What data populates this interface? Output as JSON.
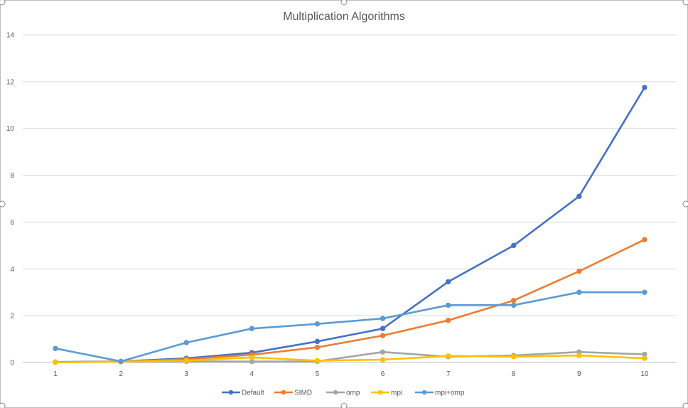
{
  "chart_data": {
    "type": "line",
    "title": "Multiplication Algorithms",
    "xlabel": "",
    "ylabel": "",
    "x": [
      "1",
      "2",
      "3",
      "4",
      "5",
      "6",
      "7",
      "8",
      "9",
      "10"
    ],
    "ylim": [
      0,
      14
    ],
    "yticks": [
      "0",
      "2",
      "4",
      "6",
      "8",
      "10",
      "12",
      "14"
    ],
    "grid": true,
    "legend_position": "bottom",
    "series": [
      {
        "name": "Default",
        "color": "#4472C4",
        "values": [
          0.02,
          0.05,
          0.18,
          0.42,
          0.9,
          1.45,
          3.45,
          5.0,
          7.1,
          11.75
        ]
      },
      {
        "name": "SIMD",
        "color": "#ED7D31",
        "values": [
          0.01,
          0.04,
          0.14,
          0.33,
          0.65,
          1.15,
          1.8,
          2.65,
          3.9,
          5.25
        ]
      },
      {
        "name": "omp",
        "color": "#A5A5A5",
        "values": [
          0.01,
          0.03,
          0.05,
          0.04,
          0.05,
          0.45,
          0.25,
          0.3,
          0.45,
          0.35
        ]
      },
      {
        "name": "mpi",
        "color": "#FFC000",
        "values": [
          0.01,
          0.04,
          0.08,
          0.22,
          0.08,
          0.12,
          0.28,
          0.25,
          0.3,
          0.18
        ]
      },
      {
        "name": "mpi+omp",
        "color": "#5B9BD5",
        "values": [
          0.6,
          0.05,
          0.85,
          1.45,
          1.65,
          1.88,
          2.45,
          2.45,
          3.0,
          3.0
        ]
      }
    ]
  }
}
